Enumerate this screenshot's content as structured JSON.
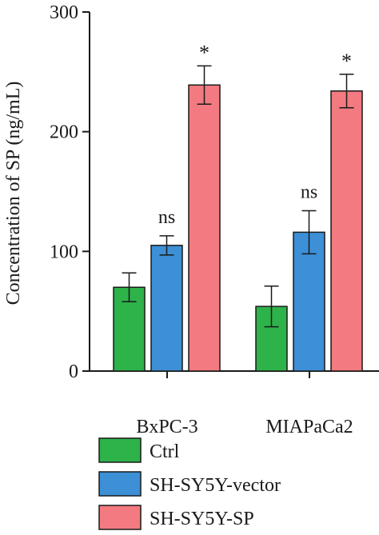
{
  "chart_data": {
    "type": "bar",
    "categories": [
      "BxPC-3",
      "MIAPaCa2"
    ],
    "ylabel": "Concentration of SP (ng/mL)",
    "xlabel": "",
    "ylim": [
      0,
      300
    ],
    "yticks": [
      0,
      100,
      200,
      300
    ],
    "grid": false,
    "legend_position": "bottom",
    "series": [
      {
        "name": "Ctrl",
        "color": "#2eb24a",
        "values": [
          70,
          54
        ],
        "errors": [
          12,
          17
        ],
        "annotations": [
          "",
          ""
        ]
      },
      {
        "name": "SH-SY5Y-vector",
        "color": "#3d8fd6",
        "values": [
          105,
          116
        ],
        "errors": [
          8,
          18
        ],
        "annotations": [
          "ns",
          "ns"
        ]
      },
      {
        "name": "SH-SY5Y-SP",
        "color": "#f27a80",
        "values": [
          239,
          234
        ],
        "errors": [
          16,
          14
        ],
        "annotations": [
          "*",
          "*"
        ]
      }
    ]
  }
}
